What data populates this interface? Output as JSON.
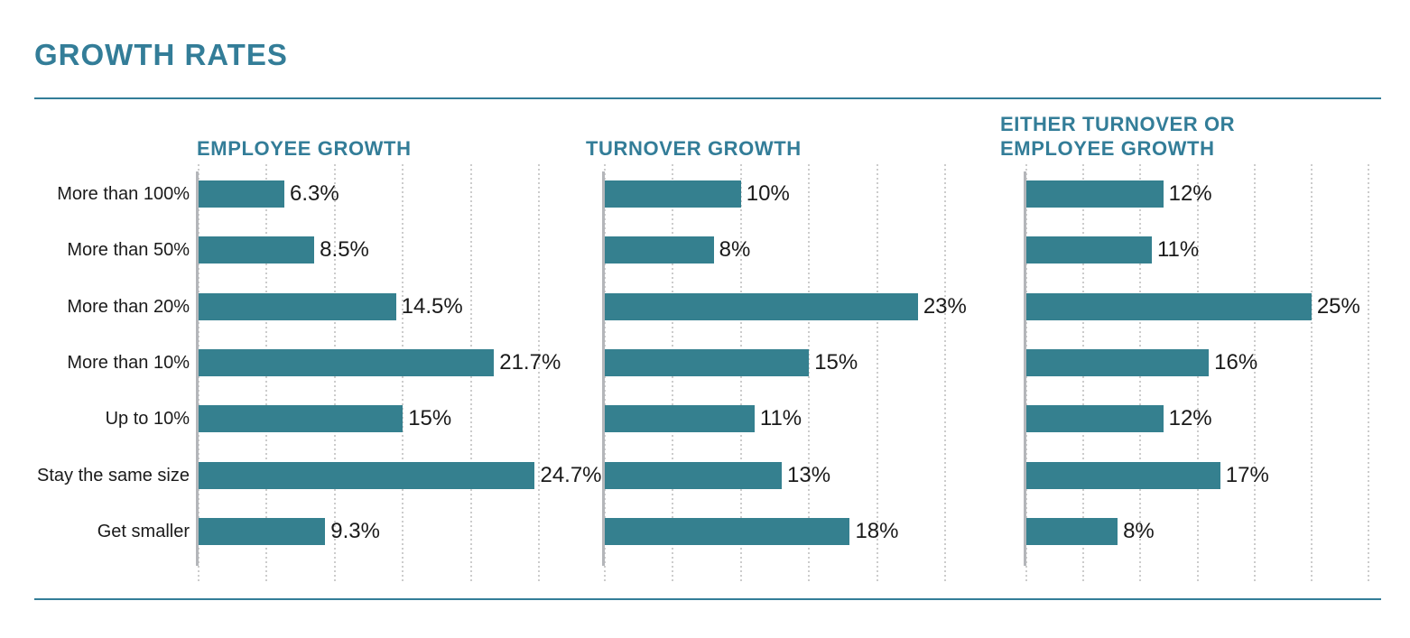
{
  "page": {
    "title": "GROWTH RATES",
    "colors": {
      "accent_teal": "#337d98",
      "bar_teal": "#35808f",
      "axis_gray": "#b4b6ba",
      "gridline_gray": "#cccccc",
      "text_black": "#1a1a1a"
    }
  },
  "chart_data": {
    "type": "bar",
    "orientation": "horizontal",
    "title": "GROWTH RATES",
    "grid": "vertical dotted gridlines every 5%",
    "legend": "none",
    "value_unit": "%",
    "categories": [
      "More than 100%",
      "More than 50%",
      "More than 20%",
      "More than 10%",
      "Up to 10%",
      "Stay the same size",
      "Get smaller"
    ],
    "charts": [
      {
        "title_lines": [
          "EMPLOYEE GROWTH"
        ],
        "values": [
          6.3,
          8.5,
          14.5,
          21.7,
          15,
          24.7,
          9.3
        ],
        "value_labels": [
          "6.3%",
          "8.5%",
          "14.5%",
          "21.7%",
          "15%",
          "24.7%",
          "9.3%"
        ],
        "xmax": 25,
        "grid_step": 5
      },
      {
        "title_lines": [
          "TURNOVER GROWTH"
        ],
        "values": [
          10,
          8,
          23,
          15,
          11,
          13,
          18
        ],
        "value_labels": [
          "10%",
          "8%",
          "23%",
          "15%",
          "11%",
          "13%",
          "18%"
        ],
        "xmax": 25,
        "grid_step": 5
      },
      {
        "title_lines": [
          "EITHER TURNOVER OR",
          "EMPLOYEE GROWTH"
        ],
        "values": [
          12,
          11,
          25,
          16,
          12,
          17,
          8
        ],
        "value_labels": [
          "12%",
          "11%",
          "25%",
          "16%",
          "12%",
          "17%",
          "8%"
        ],
        "xmax": 30,
        "grid_step": 5
      }
    ]
  }
}
